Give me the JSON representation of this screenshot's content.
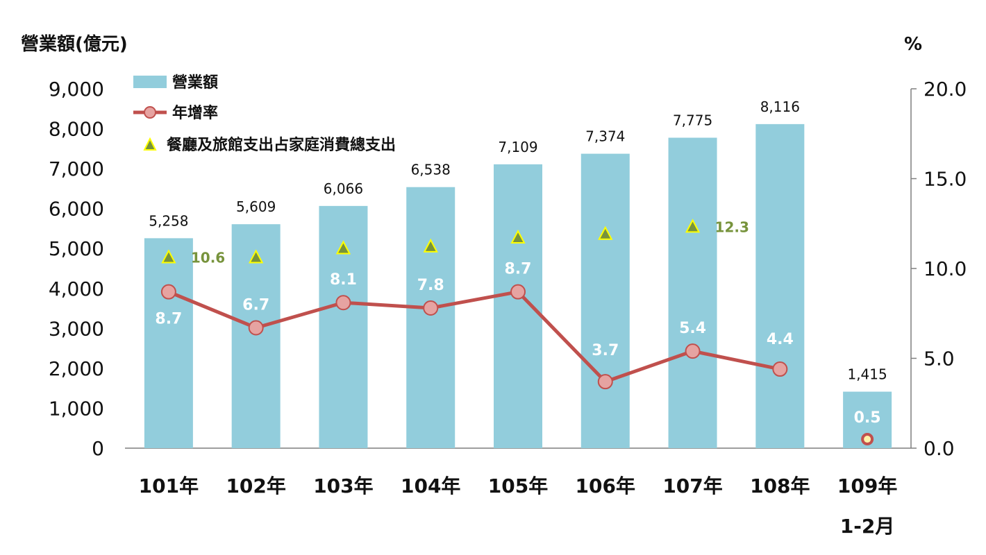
{
  "chart_data": {
    "type": "bar",
    "categories": [
      "101年",
      "102年",
      "103年",
      "104年",
      "105年",
      "106年",
      "107年",
      "108年",
      "109年"
    ],
    "category_sublabels": [
      "",
      "",
      "",
      "",
      "",
      "",
      "",
      "",
      "1-2月"
    ],
    "ylabel": "營業額(億元)",
    "y2label": "%",
    "ylim": [
      0,
      9000
    ],
    "y2lim": [
      0,
      20
    ],
    "yticks": [
      "0",
      "1,000",
      "2,000",
      "3,000",
      "4,000",
      "5,000",
      "6,000",
      "7,000",
      "8,000",
      "9,000"
    ],
    "y2ticks": [
      "0.0",
      "5.0",
      "10.0",
      "15.0",
      "20.0"
    ],
    "legend_position": "top-left",
    "series": [
      {
        "name": "營業額",
        "type": "bar",
        "axis": "left",
        "color": "#92cddc",
        "values": [
          5258,
          5609,
          6066,
          6538,
          7109,
          7374,
          7775,
          8116,
          1415
        ],
        "labels": [
          "5,258",
          "5,609",
          "6,066",
          "6,538",
          "7,109",
          "7,374",
          "7,775",
          "8,116",
          "1,415"
        ]
      },
      {
        "name": "年增率",
        "type": "line",
        "axis": "right",
        "color": "#c0504d",
        "marker_fill": "#e6a3a1",
        "values": [
          8.7,
          6.7,
          8.1,
          7.8,
          8.7,
          3.7,
          5.4,
          4.4,
          0.5
        ],
        "labels": [
          "8.7",
          "6.7",
          "8.1",
          "7.8",
          "8.7",
          "3.7",
          "5.4",
          "4.4",
          "0.5"
        ]
      },
      {
        "name": "餐廳及旅館支出占家庭消費總支出",
        "type": "scatter",
        "axis": "right",
        "marker": "triangle",
        "color": "#77933c",
        "values": [
          10.6,
          10.6,
          11.1,
          11.2,
          11.7,
          11.9,
          12.3,
          null,
          null
        ],
        "labels": [
          "10.6",
          "",
          "",
          "",
          "",
          "",
          "12.3",
          "",
          ""
        ]
      }
    ]
  }
}
